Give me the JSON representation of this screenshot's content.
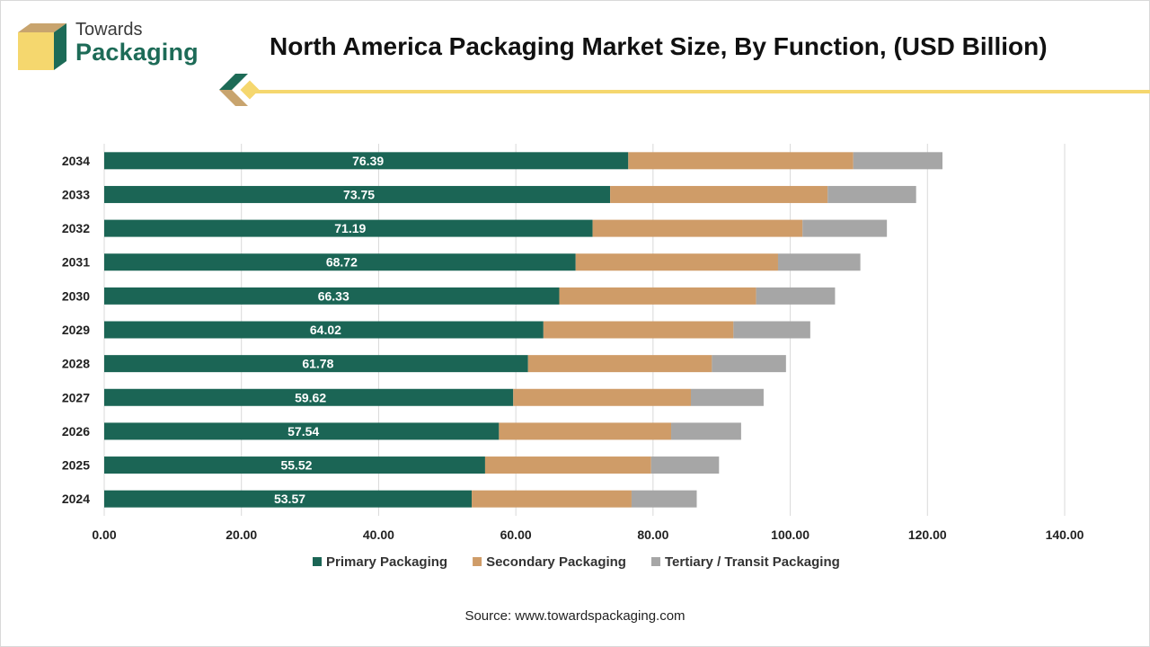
{
  "header": {
    "logo_line1": "Towards",
    "logo_line2": "Packaging",
    "title": "North America Packaging Market Size, By Function, (USD Billion)"
  },
  "colors": {
    "primary": "#1b6555",
    "secondary": "#cf9c68",
    "tertiary": "#a6a6a6",
    "accent_gold": "#f5d76e",
    "brand_brown": "#c8a46e"
  },
  "chart_data": {
    "type": "bar",
    "orientation": "horizontal",
    "stacked": true,
    "categories": [
      "2034",
      "2033",
      "2032",
      "2031",
      "2030",
      "2029",
      "2028",
      "2027",
      "2026",
      "2025",
      "2024"
    ],
    "series": [
      {
        "name": "Primary Packaging",
        "values": [
          76.39,
          73.75,
          71.19,
          68.72,
          66.33,
          64.02,
          61.78,
          59.62,
          57.54,
          55.52,
          53.57
        ],
        "color": "#1b6555",
        "labeled": true
      },
      {
        "name": "Secondary Packaging",
        "values": [
          32.8,
          31.7,
          30.6,
          29.5,
          28.7,
          27.7,
          26.8,
          25.9,
          25.1,
          24.2,
          23.3
        ],
        "color": "#cf9c68",
        "labeled": false
      },
      {
        "name": "Tertiary / Transit Packaging",
        "values": [
          13.0,
          12.9,
          12.3,
          12.0,
          11.5,
          11.2,
          10.8,
          10.6,
          10.2,
          9.9,
          9.5
        ],
        "color": "#a6a6a6",
        "labeled": false
      }
    ],
    "x_ticks": [
      "0.00",
      "20.00",
      "40.00",
      "60.00",
      "80.00",
      "100.00",
      "120.00",
      "140.00"
    ],
    "xlim": [
      0,
      140
    ],
    "grid": "vertical",
    "legend": "bottom",
    "source": "Source: www.towardspackaging.com"
  }
}
